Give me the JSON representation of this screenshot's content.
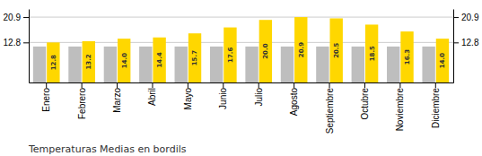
{
  "chart_data": {
    "type": "bar",
    "title": "Temperaturas Medias en bordils",
    "categories": [
      "Enero",
      "Febrero",
      "Marzo",
      "Abril",
      "Mayo",
      "Junio",
      "Julio",
      "Agosto",
      "Septiembre",
      "Octubre",
      "Noviembre",
      "Diciembre"
    ],
    "series": [
      {
        "color": "#BEBEBE",
        "values": [
          11.5,
          11.5,
          11.5,
          11.5,
          11.5,
          11.5,
          11.5,
          11.5,
          11.5,
          11.5,
          11.5,
          11.5
        ]
      },
      {
        "color": "#FFD700",
        "data_labels": true,
        "values": [
          12.8,
          13.2,
          14.0,
          14.4,
          15.7,
          17.6,
          20.0,
          20.9,
          20.5,
          18.5,
          16.3,
          14.0
        ],
        "value_labels": [
          "12.8",
          "13.2",
          "14.0",
          "14.4",
          "15.7",
          "17.6",
          "20.0",
          "20.9",
          "20.5",
          "18.5",
          "16.3",
          "14.0"
        ]
      }
    ],
    "ylim": [
      0,
      23.5
    ],
    "yticks": [
      12.8,
      20.9
    ],
    "grid": true
  }
}
